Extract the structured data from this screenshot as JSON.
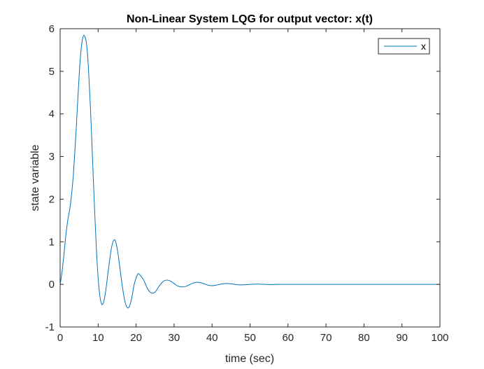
{
  "chart_data": {
    "type": "line",
    "title": "Non-Linear System LQG for output vector: x(t)",
    "xlabel": "time (sec)",
    "ylabel": "state variable",
    "xlim": [
      0,
      100
    ],
    "ylim": [
      -1,
      6
    ],
    "xticks": [
      0,
      10,
      20,
      30,
      40,
      50,
      60,
      70,
      80,
      90,
      100
    ],
    "yticks": [
      -1,
      0,
      1,
      2,
      3,
      4,
      5,
      6
    ],
    "xtick_labels": [
      "0",
      "10",
      "20",
      "30",
      "40",
      "50",
      "60",
      "70",
      "80",
      "90",
      "100"
    ],
    "ytick_labels": [
      "-1",
      "0",
      "1",
      "2",
      "3",
      "4",
      "5",
      "6"
    ],
    "grid": false,
    "legend": {
      "position": "top-right",
      "entries": [
        "x"
      ]
    },
    "series": [
      {
        "name": "x",
        "color": "#0072bd",
        "x": [
          0,
          0.5,
          1,
          1.5,
          2,
          2.5,
          3,
          3.5,
          4,
          4.5,
          5,
          5.5,
          6,
          6.5,
          7,
          7.5,
          8,
          8.5,
          9,
          9.5,
          10,
          10.5,
          11,
          11.5,
          12,
          12.5,
          13,
          13.5,
          14,
          14.5,
          15,
          15.5,
          16,
          16.5,
          17,
          17.5,
          18,
          18.5,
          19,
          19.5,
          20,
          20.5,
          21,
          22,
          23,
          24,
          25,
          26,
          27,
          28,
          29,
          30,
          31,
          32,
          33,
          34,
          35,
          36,
          37,
          38,
          39,
          40,
          41,
          42,
          43,
          44,
          45,
          46,
          47,
          48,
          49,
          50,
          51,
          52,
          53,
          54,
          55,
          56,
          57,
          58,
          59,
          60,
          62,
          64,
          66,
          68,
          70,
          75,
          80,
          85,
          90,
          95,
          100
        ],
        "y": [
          0.0,
          0.3,
          0.7,
          1.15,
          1.5,
          1.75,
          2.1,
          2.6,
          3.3,
          4.1,
          4.9,
          5.5,
          5.8,
          5.82,
          5.6,
          5.0,
          4.1,
          3.0,
          1.9,
          0.9,
          0.15,
          -0.3,
          -0.47,
          -0.4,
          -0.15,
          0.2,
          0.55,
          0.85,
          1.02,
          1.03,
          0.85,
          0.55,
          0.2,
          -0.12,
          -0.38,
          -0.52,
          -0.55,
          -0.45,
          -0.25,
          0.0,
          0.15,
          0.25,
          0.22,
          0.1,
          -0.1,
          -0.2,
          -0.18,
          -0.05,
          0.06,
          0.1,
          0.08,
          0.02,
          -0.04,
          -0.06,
          -0.05,
          -0.01,
          0.03,
          0.05,
          0.04,
          0.01,
          -0.02,
          -0.03,
          -0.02,
          0.0,
          0.015,
          0.02,
          0.012,
          0.0,
          -0.01,
          -0.012,
          -0.006,
          0.0,
          0.005,
          0.006,
          0.003,
          0.0,
          -0.003,
          -0.003,
          -0.001,
          0.0,
          0.001,
          0.001,
          0.0,
          0.0,
          0.0,
          0.0,
          0.0,
          0.0,
          0.0,
          0.0,
          0.0,
          0.0,
          0.0
        ]
      }
    ]
  }
}
